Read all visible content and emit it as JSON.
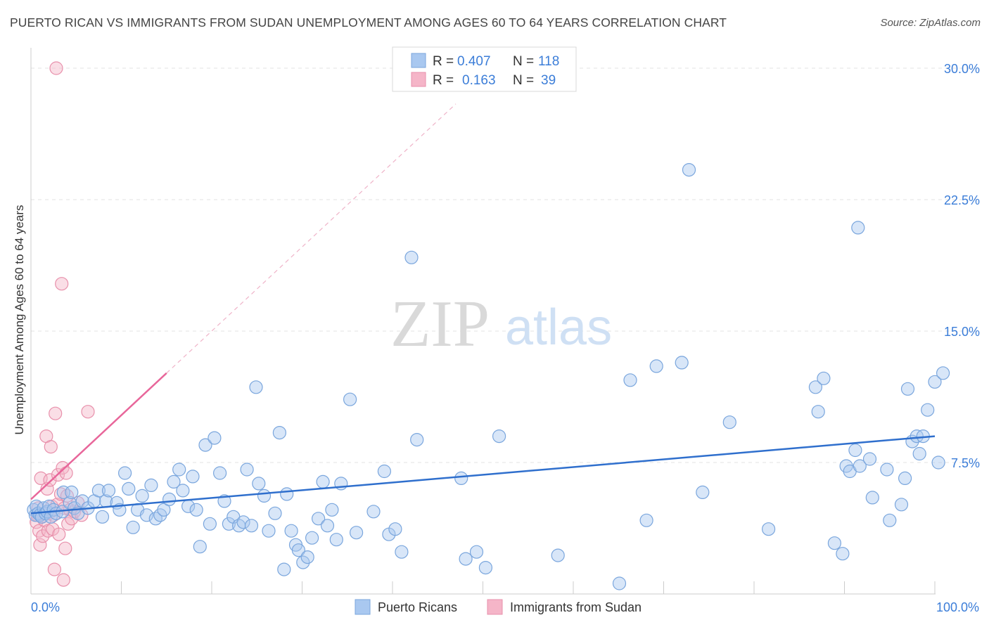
{
  "header": {
    "title": "PUERTO RICAN VS IMMIGRANTS FROM SUDAN UNEMPLOYMENT AMONG AGES 60 TO 64 YEARS CORRELATION CHART",
    "source": "Source: ZipAtlas.com"
  },
  "watermark": {
    "zip": "ZIP",
    "atlas": "atlas"
  },
  "chart_data": {
    "type": "scatter",
    "title": "PUERTO RICAN VS IMMIGRANTS FROM SUDAN UNEMPLOYMENT AMONG AGES 60 TO 64 YEARS CORRELATION CHART",
    "xlabel": "",
    "ylabel": "Unemployment Among Ages 60 to 64 years",
    "xlim": [
      0,
      100
    ],
    "ylim": [
      0,
      30.5
    ],
    "x_tick_labels": [
      "0.0%",
      "100.0%"
    ],
    "y_ticks": [
      7.5,
      15.0,
      22.5,
      30.0
    ],
    "y_tick_labels": [
      "7.5%",
      "15.0%",
      "22.5%",
      "30.0%"
    ],
    "grid": true,
    "legend_position": "top-center",
    "stats": [
      {
        "r_label": "R =",
        "r": "0.407",
        "n_label": "N =",
        "n": "118"
      },
      {
        "r_label": "R =",
        "r": "0.163",
        "n_label": "N =",
        "n": "39"
      }
    ],
    "series": [
      {
        "name": "Puerto Ricans",
        "color": "#a9c8f0",
        "stroke": "#7aa6dd",
        "trend": {
          "x": [
            0,
            100
          ],
          "y": [
            4.6,
            9.0
          ],
          "color": "#2f6fcd",
          "dashed_extension": false
        },
        "points": [
          [
            0.3,
            4.8
          ],
          [
            0.5,
            4.5
          ],
          [
            0.6,
            5.0
          ],
          [
            0.8,
            4.6
          ],
          [
            1.0,
            4.5
          ],
          [
            1.2,
            4.4
          ],
          [
            1.4,
            4.9
          ],
          [
            1.6,
            4.6
          ],
          [
            1.8,
            4.7
          ],
          [
            2.0,
            5.0
          ],
          [
            2.2,
            4.4
          ],
          [
            2.5,
            4.8
          ],
          [
            2.8,
            4.6
          ],
          [
            3.5,
            4.7
          ],
          [
            3.6,
            5.8
          ],
          [
            4.3,
            5.2
          ],
          [
            4.5,
            5.8
          ],
          [
            4.8,
            4.9
          ],
          [
            5.2,
            4.6
          ],
          [
            5.7,
            5.3
          ],
          [
            6.3,
            4.9
          ],
          [
            7.0,
            5.3
          ],
          [
            7.5,
            5.9
          ],
          [
            7.9,
            4.4
          ],
          [
            8.3,
            5.3
          ],
          [
            8.6,
            5.9
          ],
          [
            9.5,
            5.2
          ],
          [
            9.8,
            4.8
          ],
          [
            10.4,
            6.9
          ],
          [
            10.8,
            6.0
          ],
          [
            11.3,
            3.8
          ],
          [
            11.8,
            4.8
          ],
          [
            12.3,
            5.6
          ],
          [
            12.8,
            4.5
          ],
          [
            13.3,
            6.2
          ],
          [
            13.8,
            4.3
          ],
          [
            14.3,
            4.5
          ],
          [
            14.7,
            4.8
          ],
          [
            15.3,
            5.4
          ],
          [
            15.8,
            6.4
          ],
          [
            16.4,
            7.1
          ],
          [
            16.8,
            5.9
          ],
          [
            17.4,
            5.0
          ],
          [
            17.9,
            6.7
          ],
          [
            18.3,
            4.8
          ],
          [
            18.7,
            2.7
          ],
          [
            19.3,
            8.5
          ],
          [
            19.8,
            4.0
          ],
          [
            20.3,
            8.9
          ],
          [
            20.9,
            6.9
          ],
          [
            21.4,
            5.3
          ],
          [
            21.9,
            4.0
          ],
          [
            22.4,
            4.4
          ],
          [
            23.0,
            3.9
          ],
          [
            23.5,
            4.1
          ],
          [
            23.9,
            7.1
          ],
          [
            24.4,
            3.9
          ],
          [
            24.9,
            11.8
          ],
          [
            25.2,
            6.3
          ],
          [
            25.8,
            5.6
          ],
          [
            26.3,
            3.6
          ],
          [
            27.0,
            4.6
          ],
          [
            27.5,
            9.2
          ],
          [
            28.0,
            1.4
          ],
          [
            28.3,
            5.7
          ],
          [
            28.8,
            3.6
          ],
          [
            29.3,
            2.8
          ],
          [
            29.6,
            2.5
          ],
          [
            30.1,
            1.8
          ],
          [
            30.6,
            2.1
          ],
          [
            31.1,
            3.2
          ],
          [
            31.8,
            4.3
          ],
          [
            32.3,
            6.4
          ],
          [
            32.8,
            3.9
          ],
          [
            33.3,
            4.8
          ],
          [
            33.8,
            3.1
          ],
          [
            34.3,
            6.3
          ],
          [
            35.3,
            11.1
          ],
          [
            36.0,
            3.5
          ],
          [
            37.9,
            4.7
          ],
          [
            39.1,
            7.0
          ],
          [
            39.6,
            3.4
          ],
          [
            40.3,
            3.7
          ],
          [
            41.0,
            2.4
          ],
          [
            42.1,
            19.2
          ],
          [
            42.7,
            8.8
          ],
          [
            47.6,
            6.6
          ],
          [
            48.1,
            2.0
          ],
          [
            49.3,
            2.4
          ],
          [
            50.3,
            1.5
          ],
          [
            51.8,
            9.0
          ],
          [
            58.3,
            2.2
          ],
          [
            65.1,
            0.6
          ],
          [
            66.3,
            12.2
          ],
          [
            68.1,
            4.2
          ],
          [
            69.2,
            13.0
          ],
          [
            72.0,
            13.2
          ],
          [
            72.8,
            24.2
          ],
          [
            74.3,
            5.8
          ],
          [
            77.3,
            9.8
          ],
          [
            81.6,
            3.7
          ],
          [
            86.8,
            11.8
          ],
          [
            87.1,
            10.4
          ],
          [
            87.7,
            12.3
          ],
          [
            88.9,
            2.9
          ],
          [
            89.8,
            2.3
          ],
          [
            90.2,
            7.3
          ],
          [
            90.6,
            7.0
          ],
          [
            91.2,
            8.2
          ],
          [
            91.5,
            20.9
          ],
          [
            91.7,
            7.3
          ],
          [
            92.8,
            7.7
          ],
          [
            93.1,
            5.5
          ],
          [
            94.7,
            7.1
          ],
          [
            95.0,
            4.2
          ],
          [
            96.3,
            5.1
          ],
          [
            96.7,
            6.6
          ],
          [
            97.0,
            11.7
          ],
          [
            97.5,
            8.7
          ],
          [
            98.0,
            9.0
          ],
          [
            98.3,
            8.0
          ],
          [
            98.7,
            9.0
          ],
          [
            99.2,
            10.5
          ],
          [
            100.0,
            12.1
          ],
          [
            100.4,
            7.5
          ],
          [
            100.9,
            12.6
          ]
        ]
      },
      {
        "name": "Immigrants from Sudan",
        "color": "#f5b5c8",
        "stroke": "#e890ab",
        "trend": {
          "x": [
            0,
            15
          ],
          "y": [
            5.4,
            12.6
          ],
          "color": "#e8669a",
          "dashed_extension": true,
          "extend_to_x": 47
        },
        "points": [
          [
            0.6,
            4.1
          ],
          [
            0.7,
            4.5
          ],
          [
            0.8,
            4.9
          ],
          [
            0.9,
            3.6
          ],
          [
            1.0,
            2.8
          ],
          [
            1.1,
            6.6
          ],
          [
            1.2,
            4.4
          ],
          [
            1.3,
            3.3
          ],
          [
            1.5,
            4.2
          ],
          [
            1.7,
            9.0
          ],
          [
            1.8,
            6.0
          ],
          [
            1.9,
            3.6
          ],
          [
            2.0,
            4.6
          ],
          [
            2.1,
            6.5
          ],
          [
            2.2,
            8.4
          ],
          [
            2.3,
            5.0
          ],
          [
            2.4,
            3.7
          ],
          [
            2.5,
            4.5
          ],
          [
            2.6,
            1.4
          ],
          [
            2.7,
            10.3
          ],
          [
            2.8,
            30.0
          ],
          [
            2.9,
            5.1
          ],
          [
            3.0,
            6.8
          ],
          [
            3.1,
            3.4
          ],
          [
            3.3,
            5.7
          ],
          [
            3.4,
            17.7
          ],
          [
            3.5,
            7.2
          ],
          [
            3.6,
            0.8
          ],
          [
            3.7,
            4.9
          ],
          [
            3.8,
            2.6
          ],
          [
            3.9,
            6.9
          ],
          [
            4.0,
            5.6
          ],
          [
            4.1,
            4.0
          ],
          [
            4.3,
            4.8
          ],
          [
            4.5,
            4.3
          ],
          [
            4.8,
            4.7
          ],
          [
            5.2,
            5.2
          ],
          [
            5.6,
            4.5
          ],
          [
            6.3,
            10.4
          ]
        ]
      }
    ]
  },
  "legend": {
    "items": [
      {
        "label": "Puerto Ricans",
        "color": "#a9c8f0"
      },
      {
        "label": "Immigrants from Sudan",
        "color": "#f5b5c8"
      }
    ]
  }
}
